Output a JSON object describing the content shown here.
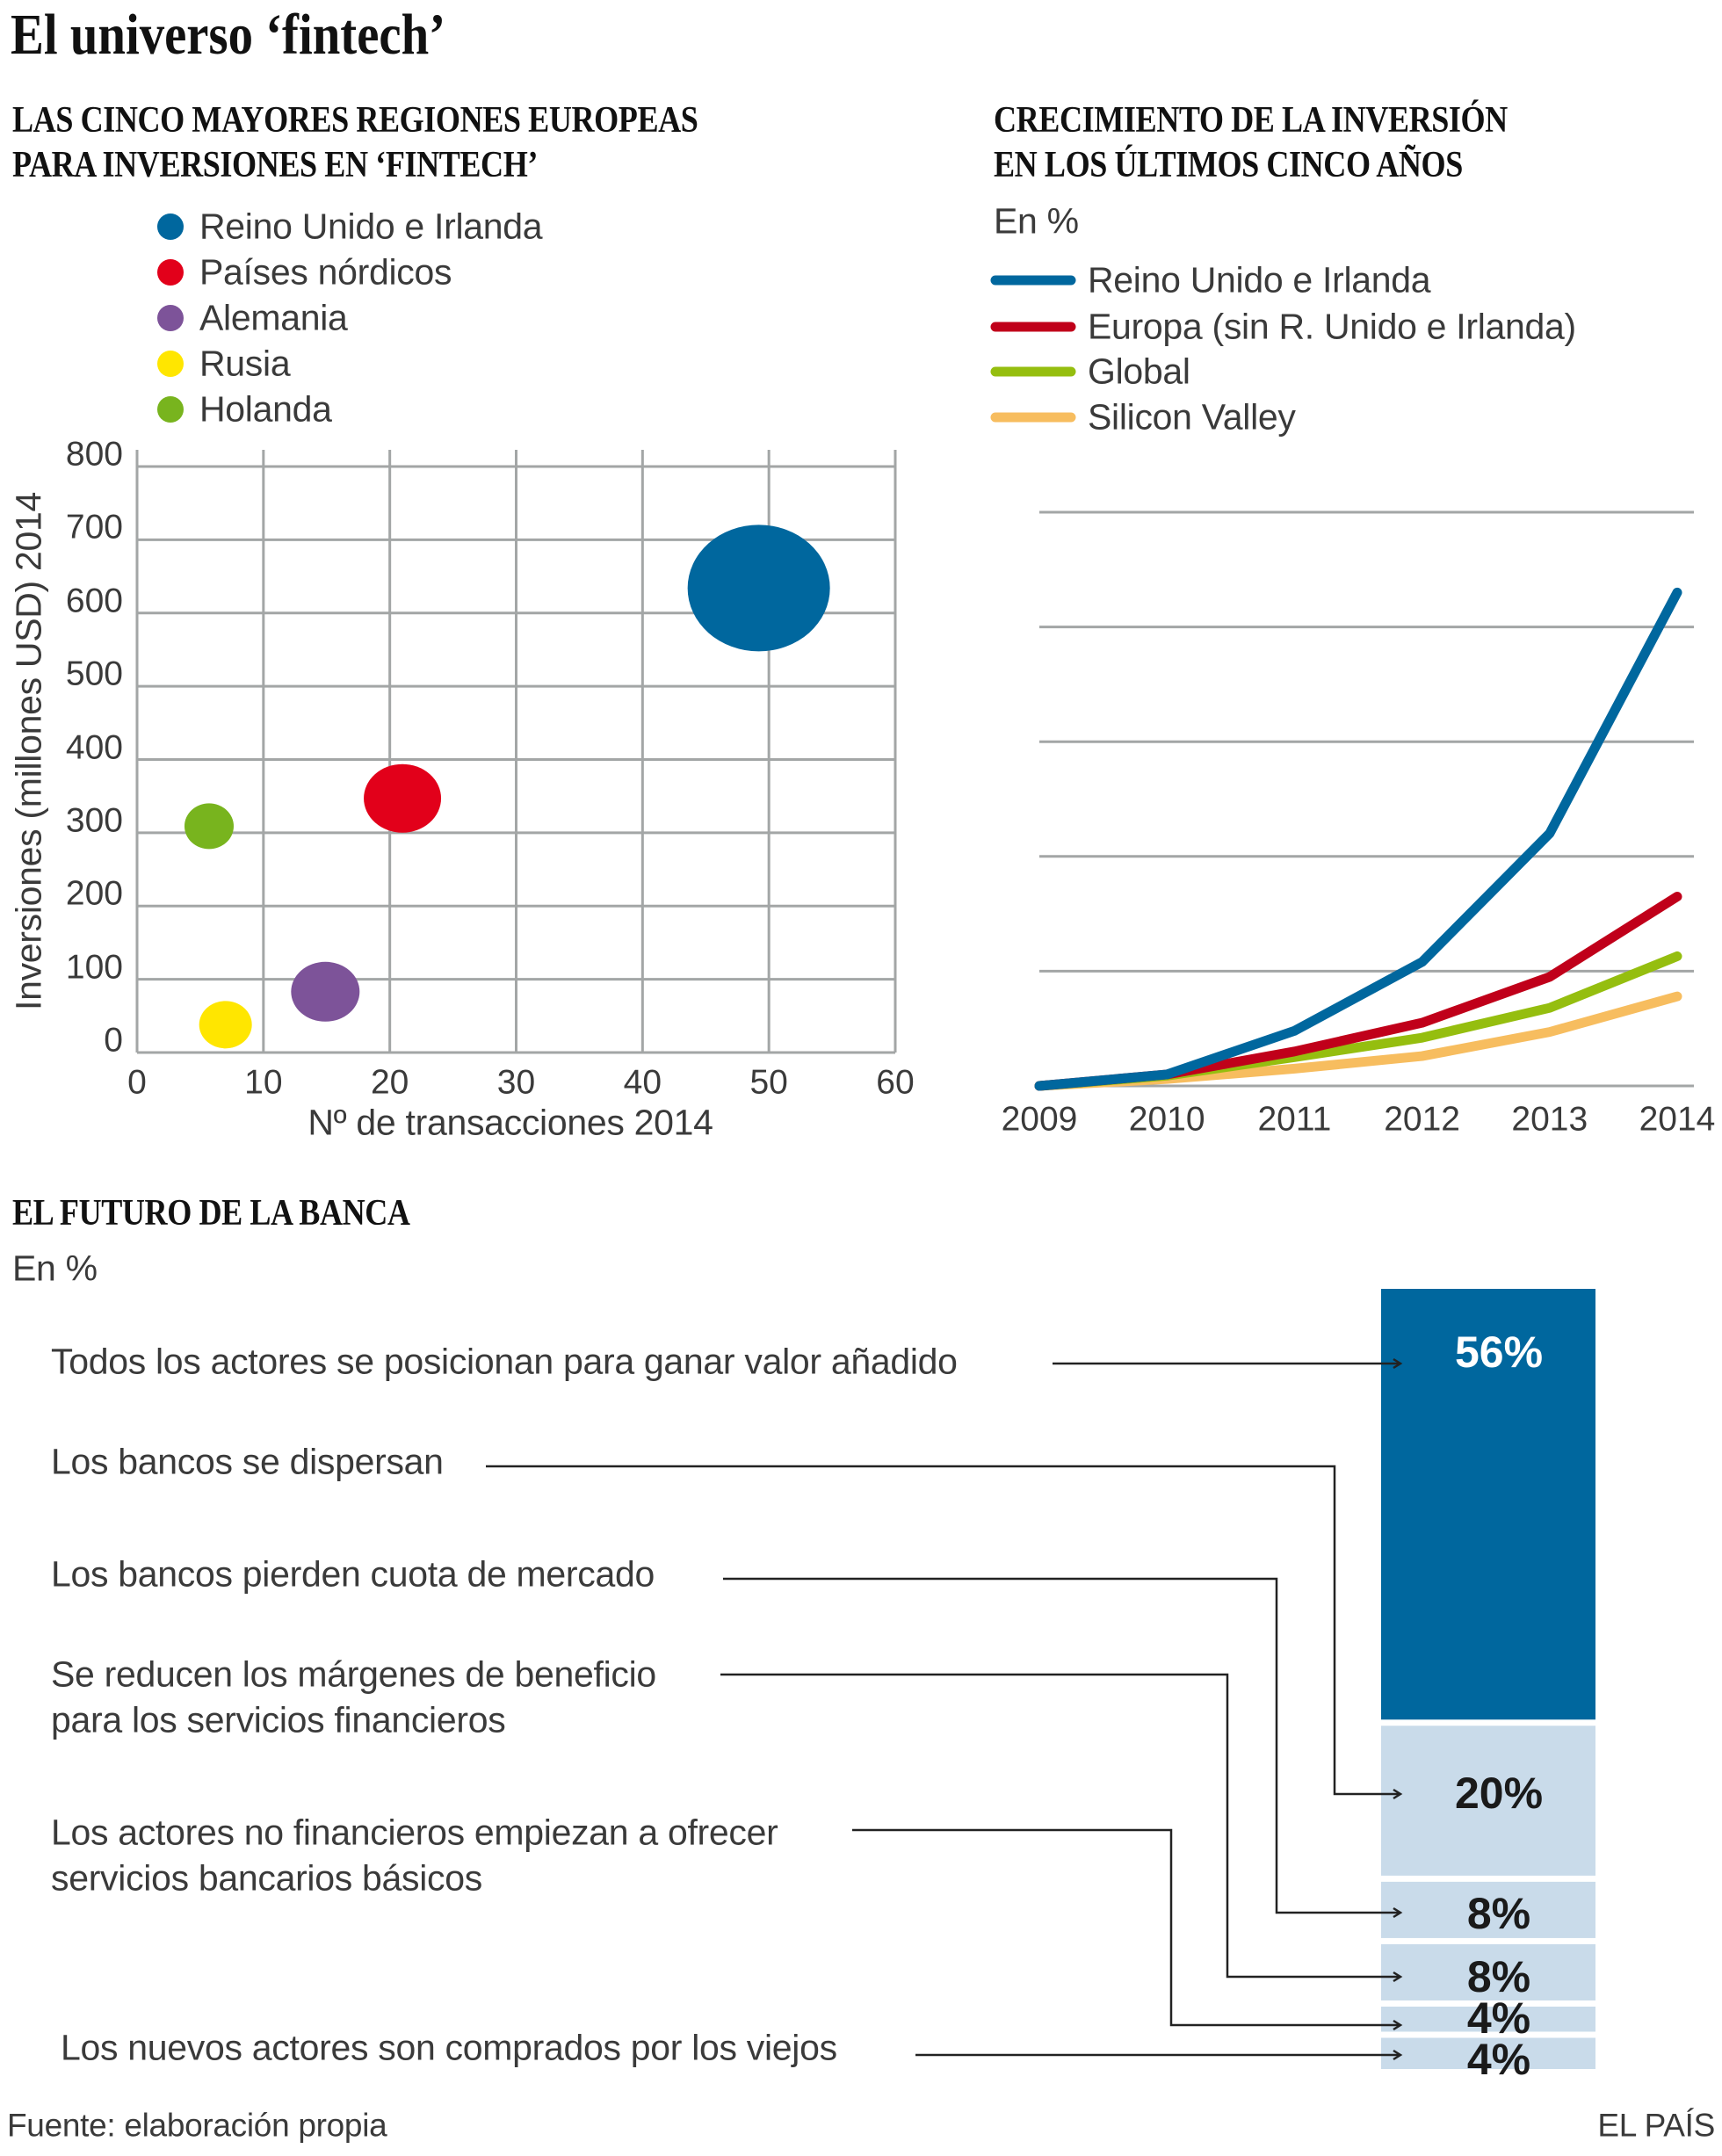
{
  "title": "El universo ‘fintech’",
  "bubble_section": {
    "heading_line1": "LAS CINCO MAYORES REGIONES EUROPEAS",
    "heading_line2": "PARA INVERSIONES EN ‘FINTECH’"
  },
  "line_section": {
    "heading_line1": "CRECIMIENTO DE LA INVERSIÓN",
    "heading_line2": "EN LOS ÚLTIMOS CINCO AÑOS",
    "unit": "En %"
  },
  "bank_section": {
    "heading": "EL FUTURO DE LA BANCA",
    "unit": "En %"
  },
  "footer": {
    "source": "Fuente: elaboración propia",
    "brand": "EL PAÍS"
  },
  "chart_data": [
    {
      "type": "scatter",
      "subtype": "bubble",
      "title": "LAS CINCO MAYORES REGIONES EUROPEAS PARA INVERSIONES EN ‘FINTECH’",
      "xlabel": "Nº de transacciones 2014",
      "ylabel": "Inversiones  (millones USD) 2014",
      "xlim": [
        0,
        60
      ],
      "ylim": [
        0,
        800
      ],
      "x_ticks": [
        "0",
        "10",
        "20",
        "30",
        "40",
        "50",
        "60"
      ],
      "y_ticks": [
        "0",
        "100",
        "200",
        "300",
        "400",
        "500",
        "600",
        "700",
        "800"
      ],
      "grid": true,
      "legend_placement": "top-left",
      "series": [
        {
          "name": "Reino Unido e Irlanda",
          "x": 49.2,
          "y": 634,
          "color": "#00679e"
        },
        {
          "name": "Países nórdicos",
          "x": 21,
          "y": 347,
          "color": "#e2001a"
        },
        {
          "name": "Alemania",
          "x": 14.9,
          "y": 83,
          "color": "#7d5399"
        },
        {
          "name": "Rusia",
          "x": 7,
          "y": 38,
          "color": "#ffe600"
        },
        {
          "name": "Holanda",
          "x": 5.7,
          "y": 309,
          "color": "#78b41e"
        }
      ]
    },
    {
      "type": "line",
      "title": "CRECIMIENTO DE LA INVERSIÓN EN LOS ÚLTIMOS CINCO AÑOS",
      "ylabel": "En %",
      "categories": [
        "2009",
        "2010",
        "2011",
        "2012",
        "2013",
        "2014"
      ],
      "ylim": [
        0,
        5
      ],
      "y_ticks_printed": false,
      "grid": true,
      "legend_placement": "top-left",
      "series": [
        {
          "name": "Reino Unido e Irlanda",
          "color": "#00679e",
          "values": [
            0,
            0.1,
            0.48,
            1.08,
            2.2,
            4.3
          ]
        },
        {
          "name": "Europa (sin R. Unido e Irlanda)",
          "color": "#c0001a",
          "values": [
            0,
            0.1,
            0.3,
            0.55,
            0.95,
            1.65
          ]
        },
        {
          "name": "Global",
          "color": "#95be0f",
          "values": [
            0,
            0.09,
            0.25,
            0.42,
            0.68,
            1.13
          ]
        },
        {
          "name": "Silicon Valley",
          "color": "#f7bd5f",
          "values": [
            0,
            0.06,
            0.15,
            0.26,
            0.47,
            0.78
          ]
        }
      ]
    },
    {
      "type": "bar",
      "subtype": "stacked-single",
      "title": "EL FUTURO DE LA BANCA",
      "ylabel": "En %",
      "categories": [
        "Todos los actores se posicionan para ganar valor añadido",
        "Los bancos se dispersan",
        "Los bancos pierden cuota de mercado",
        "Se reducen los márgenes de beneficio para los servicios financieros",
        "Los actores no financieros empiezan a ofrecer servicios bancarios básicos",
        "Los nuevos actores son comprados por los viejos"
      ],
      "label_lines": [
        [
          "Todos los actores se posicionan para ganar valor añadido"
        ],
        [
          "Los bancos se dispersan"
        ],
        [
          "Los bancos pierden cuota de mercado"
        ],
        [
          "Se reducen los márgenes de beneficio",
          "para los servicios financieros"
        ],
        [
          "Los actores no financieros empiezan a ofrecer",
          "servicios bancarios básicos"
        ],
        [
          "Los nuevos actores son comprados por los viejos"
        ]
      ],
      "values": [
        56,
        20,
        8,
        8,
        4,
        4
      ],
      "data_labels": [
        "56%",
        "20%",
        "8%",
        "8%",
        "4%",
        "4%"
      ],
      "colors": [
        "#00679e",
        "#c9dbea",
        "#c9dbea",
        "#c9dbea",
        "#c9dbea",
        "#c9dbea"
      ]
    }
  ]
}
